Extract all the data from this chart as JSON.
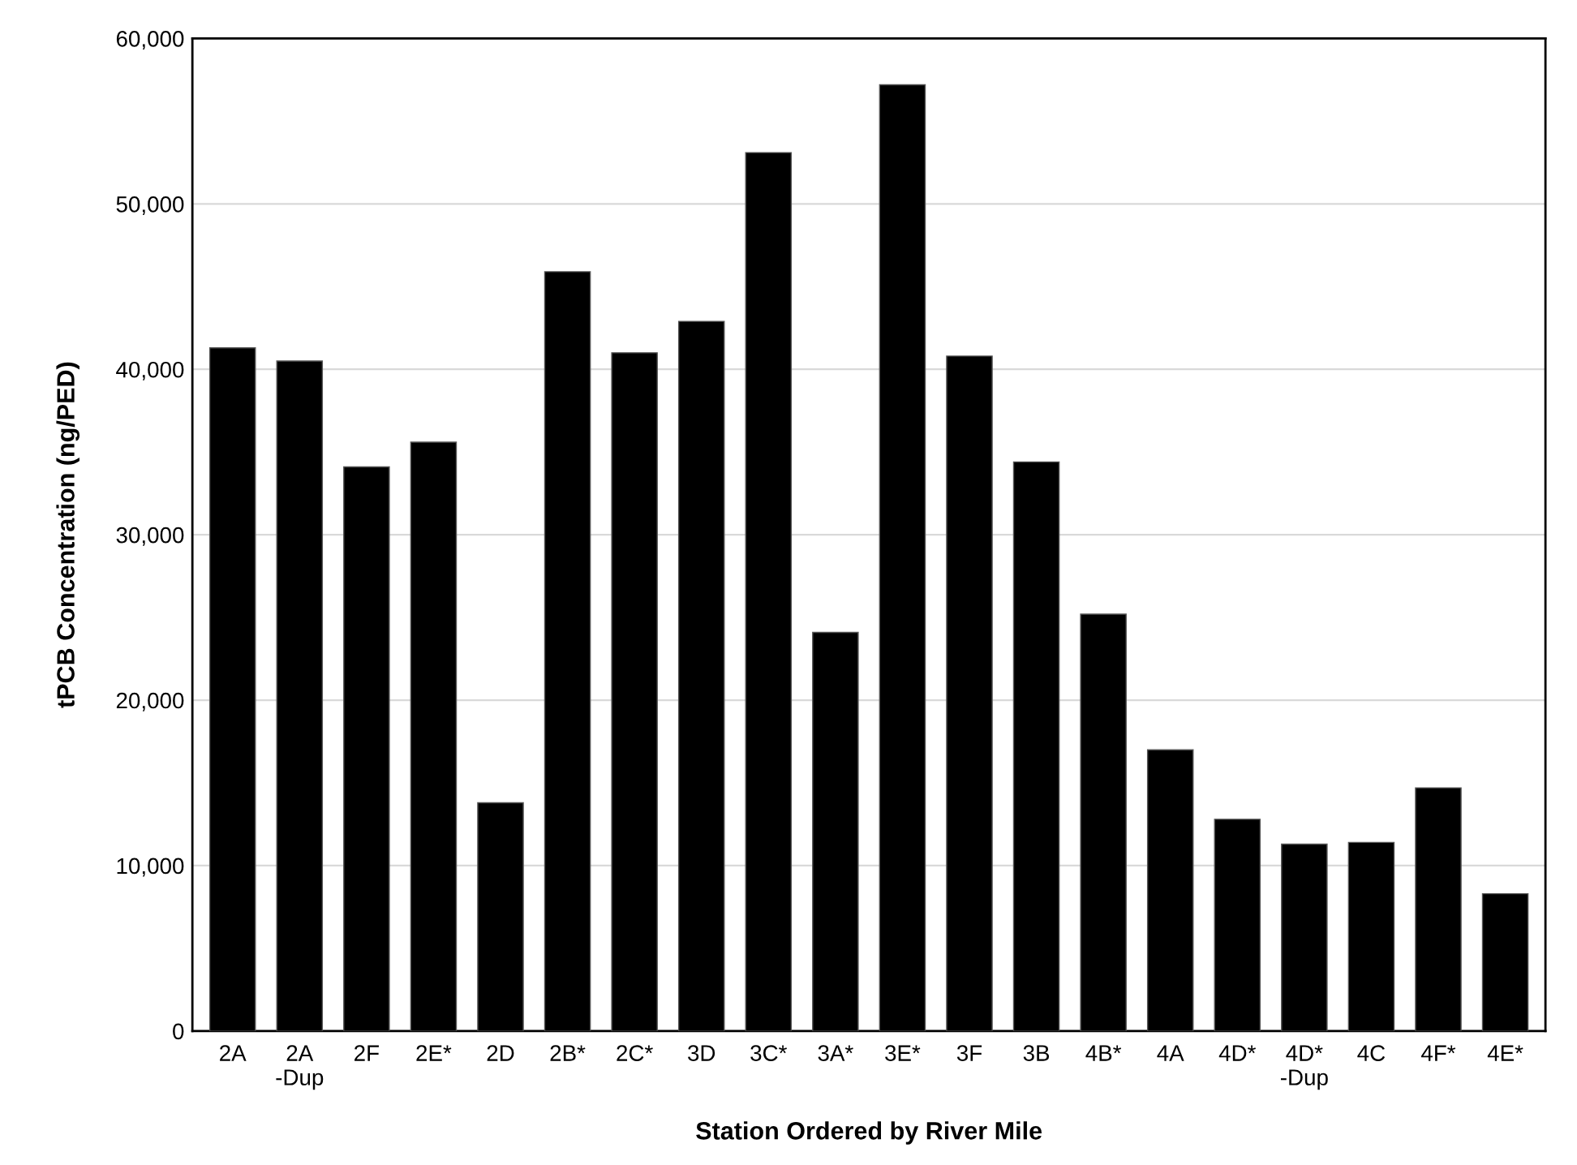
{
  "chart_data": {
    "type": "bar",
    "xlabel": "Station Ordered by River Mile",
    "ylabel": "tPCB Concentration (ng/PED)",
    "categories": [
      "2A",
      "2A\n-Dup",
      "2F",
      "2E*",
      "2D",
      "2B*",
      "2C*",
      "3D",
      "3C*",
      "3A*",
      "3E*",
      "3F",
      "3B",
      "4B*",
      "4A",
      "4D*",
      "4D*\n-Dup",
      "4C",
      "4F*",
      "4E*"
    ],
    "values": [
      41300,
      40500,
      34100,
      35600,
      13800,
      45900,
      41000,
      42900,
      53100,
      24100,
      57200,
      40800,
      34400,
      25200,
      17000,
      12800,
      11300,
      11400,
      14700,
      8300
    ],
    "color": "#000000",
    "ylim": [
      0,
      60000
    ],
    "yticks": [
      {
        "value": 0,
        "label": "0"
      },
      {
        "value": 10000,
        "label": "10,000"
      },
      {
        "value": 20000,
        "label": "20,000"
      },
      {
        "value": 30000,
        "label": "30,000"
      },
      {
        "value": 40000,
        "label": "40,000"
      },
      {
        "value": 50000,
        "label": "50,000"
      },
      {
        "value": 60000,
        "label": "60,000"
      }
    ],
    "grid": "y"
  }
}
